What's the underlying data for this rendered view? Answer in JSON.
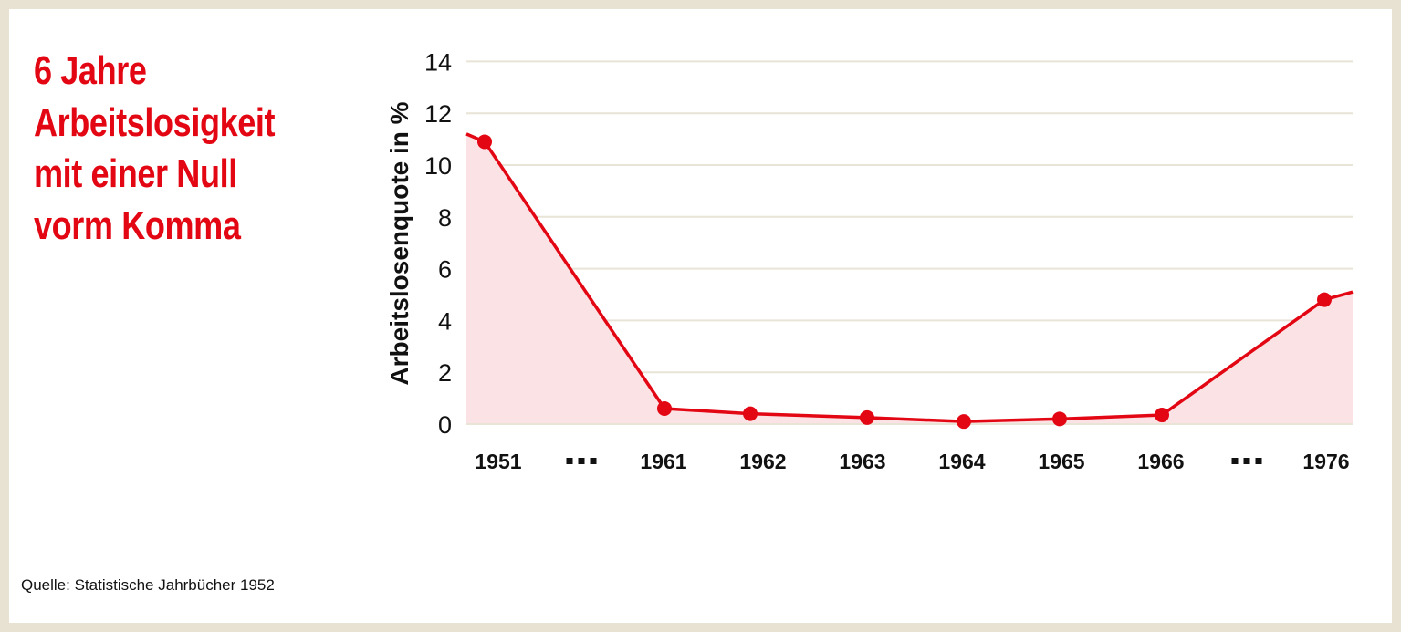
{
  "title_lines": [
    "6 Jahre",
    "Arbeitslosigkeit",
    "mit einer Null",
    "vorm Komma"
  ],
  "source": "Quelle: Statistische Jahrbücher 1952",
  "colors": {
    "accent": "#e30613",
    "area_fill": "#fbe3e5",
    "grid": "#e8e4d6",
    "frame": "#e7e2d2"
  },
  "chart_data": {
    "type": "line",
    "categories": [
      "1951",
      "…",
      "1961",
      "1962",
      "1963",
      "1964",
      "1965",
      "1966",
      "…",
      "1976"
    ],
    "gap_marker": "▪▪▪",
    "series": [
      {
        "values": [
          10.9,
          null,
          0.6,
          0.4,
          0.25,
          0.1,
          0.2,
          0.35,
          null,
          4.8
        ]
      }
    ],
    "edge_values": {
      "left": 11.2,
      "right": 5.1
    },
    "xlabel": "",
    "ylabel": "Arbeitslosenquote in %",
    "ylim": [
      0,
      14
    ],
    "yticks": [
      0,
      2,
      4,
      6,
      8,
      10,
      12,
      14
    ],
    "grid": true,
    "area_filled": true
  }
}
